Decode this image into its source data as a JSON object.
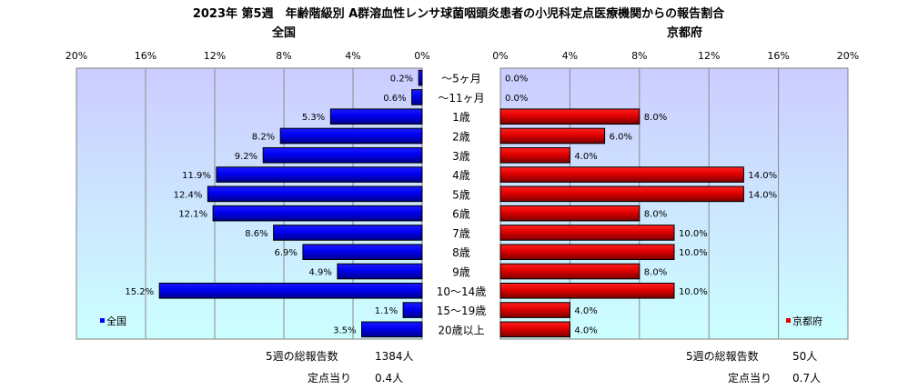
{
  "title": "2023年 第5週　年齢階級別 A群溶血性レンサ球菌咽頭炎患者の小児科定点医療機関からの報告割合",
  "colors": {
    "national": "#0000ff",
    "kyoto": "#ee0000"
  },
  "chart_data": [
    {
      "type": "bar",
      "orientation": "horizontal",
      "direction": "leftward",
      "panel_title": "全国",
      "legend": "全国",
      "legend_placement": "bottom-left",
      "categories": [
        "〜5ヶ月",
        "〜11ヶ月",
        "1歳",
        "2歳",
        "3歳",
        "4歳",
        "5歳",
        "6歳",
        "7歳",
        "8歳",
        "9歳",
        "10〜14歳",
        "15〜19歳",
        "20歳以上"
      ],
      "values": [
        0.2,
        0.6,
        5.3,
        8.2,
        9.2,
        11.9,
        12.4,
        12.1,
        8.6,
        6.9,
        4.9,
        15.2,
        1.1,
        3.5
      ],
      "value_labels": [
        "0.2%",
        "0.6%",
        "5.3%",
        "8.2%",
        "9.2%",
        "11.9%",
        "12.4%",
        "12.1%",
        "8.6%",
        "6.9%",
        "4.9%",
        "15.2%",
        "1.1%",
        "3.5%"
      ],
      "xlim": [
        0,
        20
      ],
      "ticks": [
        "0%",
        "4%",
        "8%",
        "12%",
        "16%",
        "20%"
      ],
      "grid": true
    },
    {
      "type": "bar",
      "orientation": "horizontal",
      "direction": "rightward",
      "panel_title": "京都府",
      "legend": "京都府",
      "legend_placement": "bottom-right",
      "categories": [
        "〜5ヶ月",
        "〜11ヶ月",
        "1歳",
        "2歳",
        "3歳",
        "4歳",
        "5歳",
        "6歳",
        "7歳",
        "8歳",
        "9歳",
        "10〜14歳",
        "15〜19歳",
        "20歳以上"
      ],
      "values": [
        0,
        0,
        8,
        6,
        4,
        14,
        14,
        8,
        10,
        10,
        8,
        10,
        4,
        4
      ],
      "value_labels": [
        "0.0%",
        "0.0%",
        "8.0%",
        "6.0%",
        "4.0%",
        "14.0%",
        "14.0%",
        "8.0%",
        "10.0%",
        "10.0%",
        "8.0%",
        "10.0%",
        "4.0%",
        "4.0%"
      ],
      "xlim": [
        0,
        20
      ],
      "ticks": [
        "0%",
        "4%",
        "8%",
        "12%",
        "16%",
        "20%"
      ],
      "grid": true
    }
  ],
  "summary": {
    "national": {
      "total_label": "5週の総報告数",
      "total_value": "1384人",
      "per_label": "定点当り",
      "per_value": "0.4人"
    },
    "kyoto": {
      "total_label": "5週の総報告数",
      "total_value": "50人",
      "per_label": "定点当り",
      "per_value": "0.7人"
    }
  }
}
